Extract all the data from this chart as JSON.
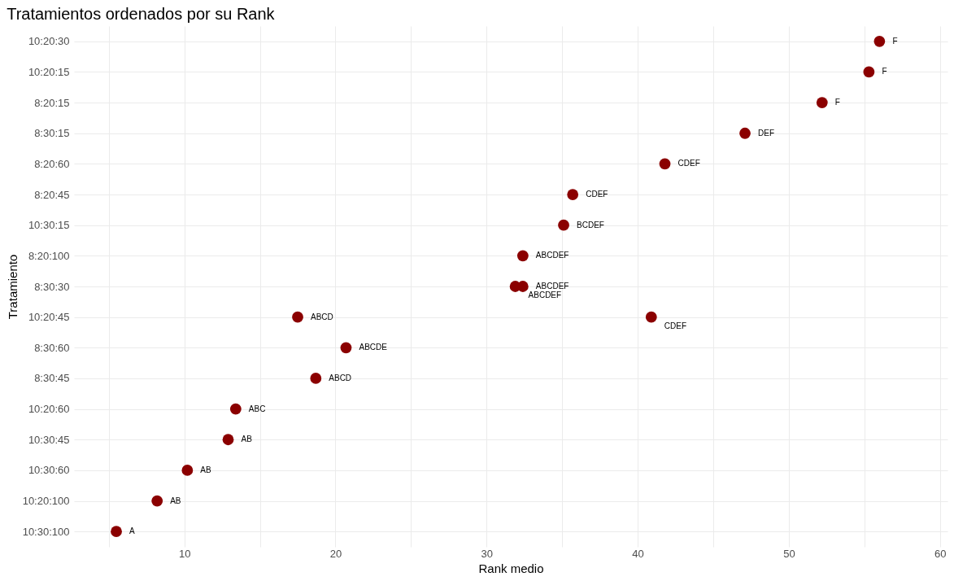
{
  "chart_data": {
    "type": "scatter",
    "orientation": "horizontal",
    "title": "Tratamientos ordenados por su Rank",
    "xlabel": "Rank medio",
    "ylabel": "Tratamiento",
    "categories": [
      "10:20:30",
      "10:20:15",
      "8:20:15",
      "8:30:15",
      "8:20:60",
      "8:20:45",
      "10:30:15",
      "8:20:100",
      "8:30:30",
      "10:20:45",
      "8:30:60",
      "8:30:45",
      "10:20:60",
      "10:30:45",
      "10:30:60",
      "10:20:100",
      "10:30:100"
    ],
    "series": [
      {
        "color": "#8b0000",
        "values": [
          56.0,
          55.3,
          52.2,
          47.1,
          41.8,
          35.7,
          35.1,
          32.4,
          32.4,
          17.5,
          20.7,
          18.7,
          13.4,
          12.9,
          10.2,
          8.2,
          5.5
        ],
        "value_labels": [
          "F",
          "F",
          "F",
          "DEF",
          "CDEF",
          "CDEF",
          "BCDEF",
          "ABCDEF",
          "ABCDEF",
          "ABCD",
          "ABCDE",
          "ABCD",
          "ABC",
          "AB",
          "AB",
          "AB",
          "A"
        ]
      },
      {
        "color": "#8b0000",
        "values": [
          null,
          null,
          null,
          null,
          null,
          null,
          null,
          null,
          31.9,
          40.9,
          null,
          null,
          null,
          null,
          null,
          null,
          null
        ],
        "value_labels": [
          null,
          null,
          null,
          null,
          null,
          null,
          null,
          null,
          "ABCDEF",
          "CDEF",
          null,
          null,
          null,
          null,
          null,
          null,
          null
        ]
      }
    ],
    "xlim": [
      2.7,
      60.5
    ],
    "xticks": [
      {
        "value": 5,
        "label": null
      },
      10,
      {
        "value": 15,
        "label": null
      },
      20,
      {
        "value": 25,
        "label": null
      },
      30,
      {
        "value": 35,
        "label": null
      },
      40,
      {
        "value": 45,
        "label": null
      },
      50,
      {
        "value": 55,
        "label": null
      },
      60
    ],
    "grid": true,
    "marker": "circle"
  }
}
